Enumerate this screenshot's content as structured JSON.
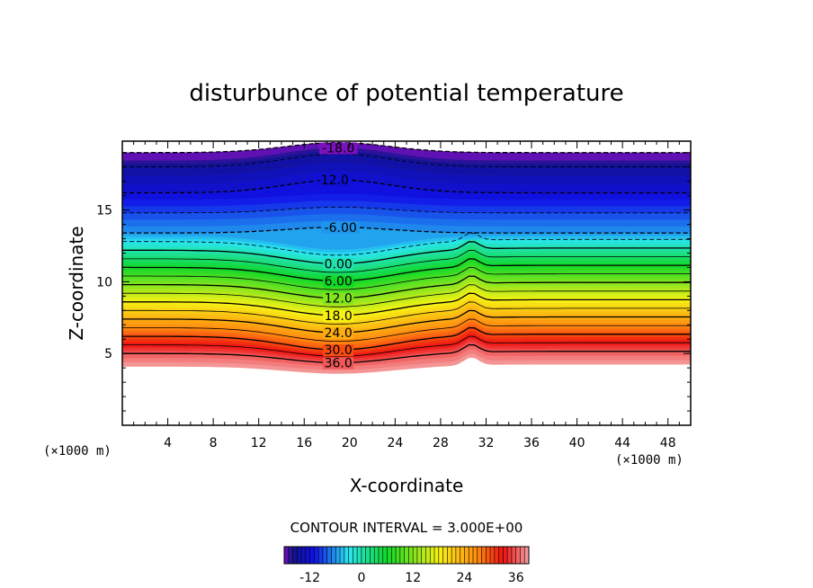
{
  "chart_data": {
    "type": "contour",
    "title": "disturbunce of potential temperature",
    "xlabel": "X-coordinate",
    "ylabel": "Z-coordinate",
    "x_unit_left": "(×1000 m)",
    "x_unit_right": "(×1000 m)",
    "xlim": [
      0,
      50
    ],
    "ylim": [
      0,
      19.8
    ],
    "x_ticks": [
      "4",
      "8",
      "12",
      "16",
      "20",
      "24",
      "28",
      "32",
      "36",
      "40",
      "44",
      "48"
    ],
    "y_ticks": [
      "5",
      "10",
      "15"
    ],
    "contour_interval_text": "CONTOUR INTERVAL = 3.000E+00",
    "contour_labels": [
      {
        "text": "-18.0",
        "value": -18
      },
      {
        "text": "-12.0",
        "value": -12
      },
      {
        "text": "-6.00",
        "value": -6
      },
      {
        "text": "0.00",
        "value": 0
      },
      {
        "text": "6.00",
        "value": 6
      },
      {
        "text": "12.0",
        "value": 12
      },
      {
        "text": "18.0",
        "value": 18
      },
      {
        "text": "24.0",
        "value": 24
      },
      {
        "text": "30.0",
        "value": 30
      },
      {
        "text": "36.0",
        "value": 36
      }
    ],
    "colorbar": {
      "min": -18,
      "max": 39,
      "ticks": [
        "-12",
        "0",
        "12",
        "24",
        "36"
      ]
    },
    "colors": {
      "violet": "#7a10c0",
      "navy": "#12128a",
      "blue": "#1010e8",
      "cyan": "#28e6f0",
      "green": "#10d828",
      "yellow": "#f6f214",
      "orange": "#ff8a10",
      "red": "#ee1010",
      "pink": "#f4a0a0"
    }
  }
}
